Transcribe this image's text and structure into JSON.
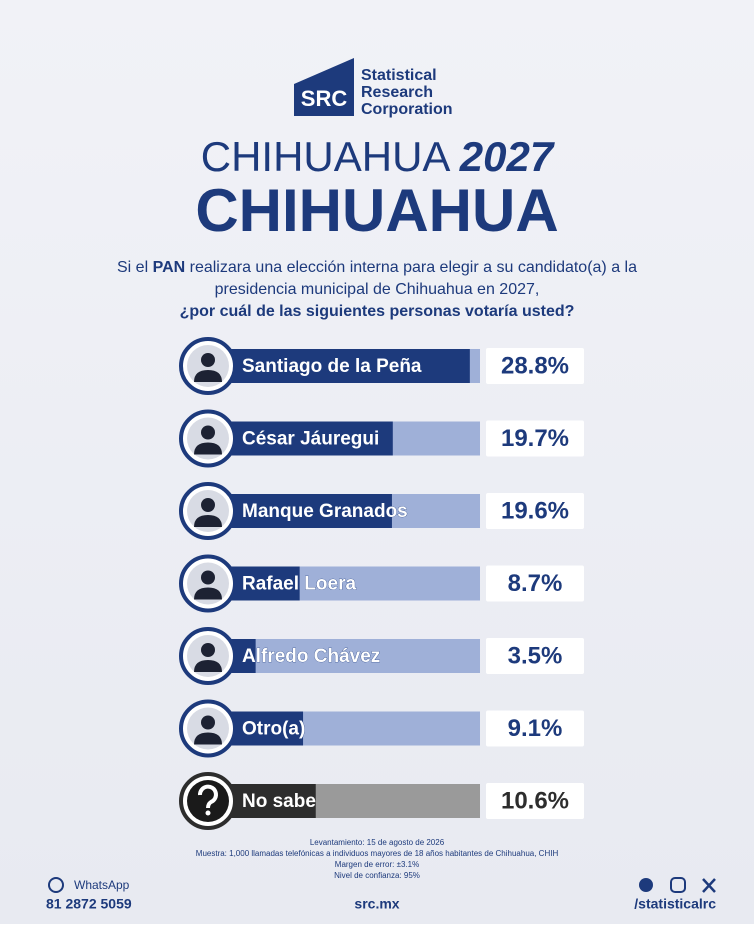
{
  "logo": {
    "mark": "SRC",
    "lines": [
      "Statistical",
      "Research",
      "Corporation"
    ]
  },
  "chart_data": {
    "type": "bar",
    "orientation": "horizontal",
    "title": "CHIHUAHUA",
    "title_year": "2027",
    "subtitle": "CHIHUAHUA",
    "question": [
      "Si el ",
      "PAN",
      " realizara una elección interna para elegir a su candidato(a) a la",
      "presidencia municipal de Chihuahua en 2027,",
      "¿por cuál de las siguientes personas votaría usted?"
    ],
    "categories": [
      "Santiago de la Peña",
      "César Jáuregui",
      "Manque Granados",
      "Rafael Loera",
      "Alfredo Chávez",
      "Otro(a)",
      "No sabe"
    ],
    "values": [
      28.8,
      19.7,
      19.6,
      8.7,
      3.5,
      9.1,
      10.6
    ],
    "value_labels": [
      "28.8%",
      "19.7%",
      "19.6%",
      "8.7%",
      "3.5%",
      "9.1%",
      "10.6%"
    ],
    "colors": [
      "#1d3a7c",
      "#1d3a7c",
      "#1d3a7c",
      "#1d3a7c",
      "#1d3a7c",
      "#1d3a7c",
      "#2d2d2d"
    ],
    "track_colors": [
      "#9fb0d8",
      "#9fb0d8",
      "#9fb0d8",
      "#9fb0d8",
      "#9fb0d8",
      "#9fb0d8",
      "#9a9a9a"
    ],
    "xlim": [
      0,
      30
    ]
  },
  "footnote": [
    "Levantamiento: 15 de agosto de 2026",
    "Muestra: 1,000 llamadas telefónicas a individuos mayores de 18 años habitantes de Chihuahua, CHIH",
    "Margen de error: ±3.1%",
    "Nivel de confianza: 95%"
  ],
  "footer": {
    "whatsapp": "WhatsApp",
    "phone": "81 2872 5059",
    "website": "src.mx",
    "social": "/statisticalrc"
  }
}
